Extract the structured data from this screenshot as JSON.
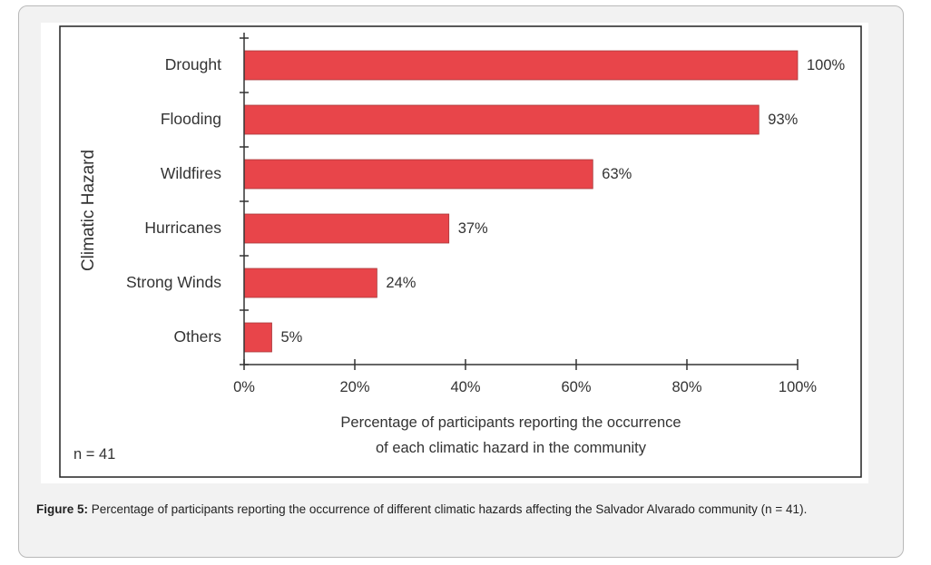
{
  "chart_data": {
    "type": "bar",
    "orientation": "horizontal",
    "categories": [
      "Drought",
      "Flooding",
      "Wildfires",
      "Hurricanes",
      "Strong Winds",
      "Others"
    ],
    "values": [
      100,
      93,
      63,
      37,
      24,
      5
    ],
    "data_labels": [
      "100%",
      "93%",
      "63%",
      "37%",
      "24%",
      "5%"
    ],
    "xlabel_lines": [
      "Percentage of participants reporting the occurrence",
      "of each climatic hazard in the community"
    ],
    "ylabel": "Climatic Hazard",
    "xlim": [
      0,
      100
    ],
    "x_ticks": [
      0,
      20,
      40,
      60,
      80,
      100
    ],
    "x_tick_labels": [
      "0%",
      "20%",
      "40%",
      "60%",
      "80%",
      "100%"
    ],
    "annotation": "n = 41",
    "bar_color": "#e8454a",
    "bar_edge_color": "#a83a3c",
    "grid": false,
    "legend": "none"
  },
  "caption": {
    "label": "Figure 5:",
    "text": " Percentage of participants reporting the occurrence of different climatic hazards affecting the Salvador Alvarado community (n = 41)."
  }
}
